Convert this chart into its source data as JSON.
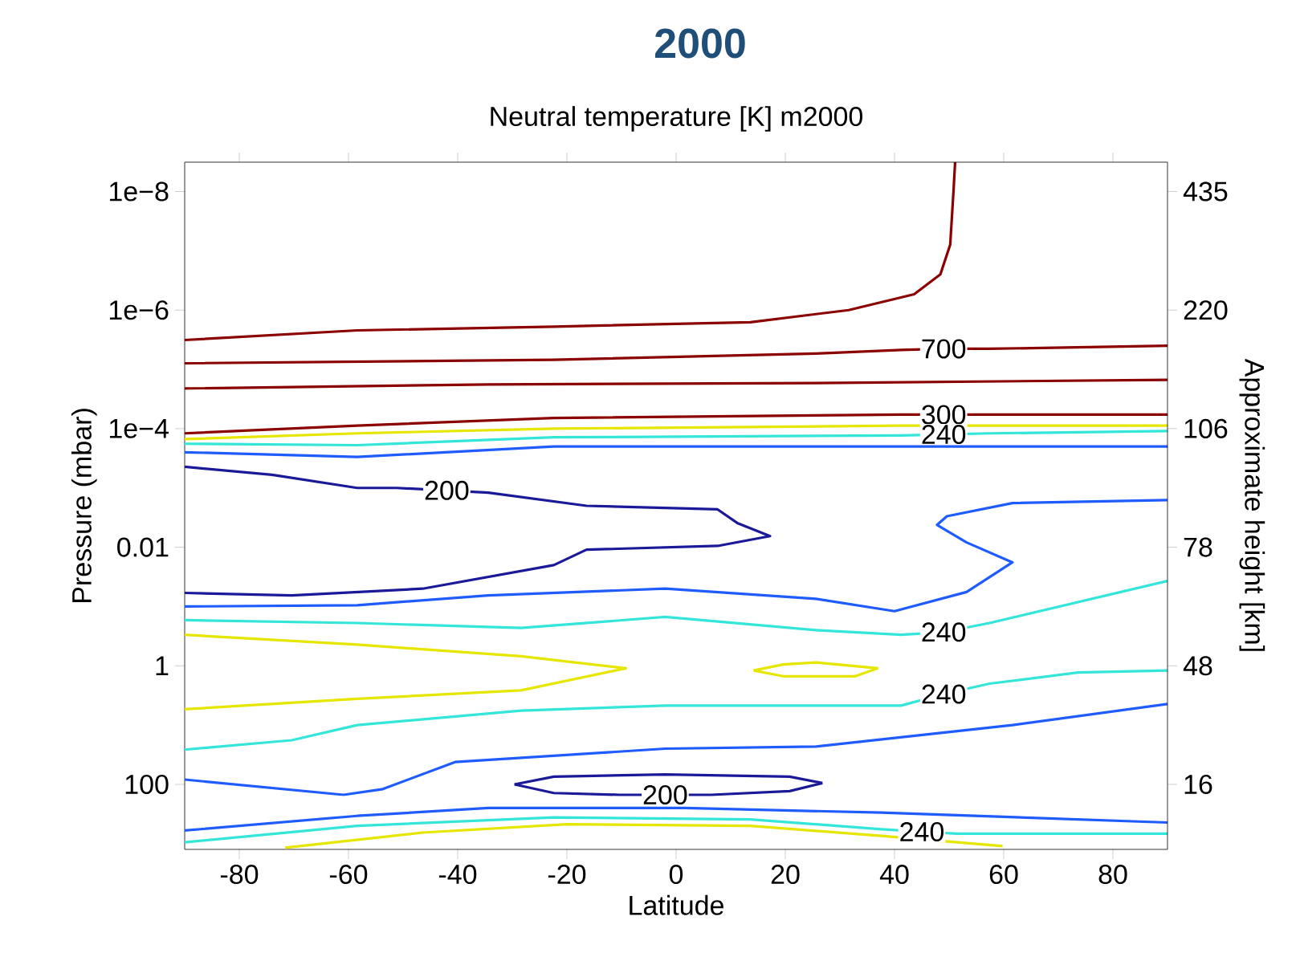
{
  "chart_data": {
    "type": "line",
    "title": "2000",
    "subtitle": "Neutral temperature [K]  m2000",
    "xlabel": "Latitude",
    "ylabel": "Pressure (mbar)",
    "y2label": "Approximate height [km]",
    "xlim": [
      -90,
      90
    ],
    "xticks": [
      -80,
      -60,
      -40,
      -20,
      0,
      20,
      40,
      60,
      80
    ],
    "ylim": [
      1250,
      3.2e-09
    ],
    "log": "y",
    "yticks": [
      {
        "value": 1e-08,
        "label": "1e−8"
      },
      {
        "value": 1e-06,
        "label": "1e−6"
      },
      {
        "value": 0.0001,
        "label": "1e−4"
      },
      0.01,
      1,
      100
    ],
    "y2_categories": [
      "435",
      "220",
      "106",
      "78",
      "48",
      "16"
    ],
    "series": [
      {
        "color": "#8b0000",
        "x": [
          -90,
          -58.4,
          -22.4,
          13.6,
          31.6,
          43.6,
          48.4,
          50.2,
          50.8,
          51.1
        ],
        "values": [
          3.2e-06,
          2.2e-06,
          1.9e-06,
          1.6e-06,
          1e-06,
          5.4e-07,
          2.5e-07,
          7.9e-08,
          1e-08,
          3.2e-09
        ]
      },
      {
        "color": "#8b0000",
        "x": [
          -90,
          -22.4,
          25.6,
          41.2,
          49,
          57.4,
          90
        ],
        "values": [
          7.9e-06,
          6.9e-06,
          5.4e-06,
          4.7e-06,
          4.5e-06,
          4.5e-06,
          4e-06
        ]
      },
      {
        "color": "#8b0000",
        "x": [
          -90,
          -34.4,
          25.6,
          90
        ],
        "values": [
          2.1e-05,
          1.8e-05,
          1.7e-05,
          1.5e-05
        ]
      },
      {
        "color": "#8b0000",
        "x": [
          -90,
          -58.4,
          -22.4,
          41.2,
          49,
          57.4,
          90
        ],
        "values": [
          0.00012,
          8.9e-05,
          6.6e-05,
          5.8e-05,
          5.8e-05,
          5.8e-05,
          5.8e-05
        ]
      },
      {
        "color": "#e6e600",
        "x": [
          -90,
          -58.4,
          -22.4,
          41.2,
          90
        ],
        "values": [
          0.00015,
          0.00012,
          0.0001,
          8.9e-05,
          8.9e-05
        ]
      },
      {
        "color": "#33e6d9",
        "x": [
          -90,
          -58.4,
          -22.4,
          41.2,
          49,
          57.4,
          90
        ],
        "values": [
          0.00018,
          0.00019,
          0.00014,
          0.00013,
          0.000125,
          0.00012,
          0.00011
        ]
      },
      {
        "color": "#1f5cff",
        "x": [
          -90,
          -58.4,
          -22.4,
          90
        ],
        "values": [
          0.00025,
          0.0003,
          0.0002,
          0.0002
        ]
      },
      {
        "color": "#1a1a99",
        "x": [
          -90,
          -74.0,
          -58.4,
          -51.2,
          -42,
          -34.4,
          -16.4,
          7.6,
          11.2,
          17.2,
          7.6,
          -16.4,
          -22.4,
          -46.4,
          -70.4,
          -90
        ],
        "values": [
          0.00044,
          0.0006,
          0.001,
          0.001,
          0.0011,
          0.0012,
          0.002,
          0.0023,
          0.0039,
          0.0065,
          0.0095,
          0.011,
          0.02,
          0.05,
          0.065,
          0.059
        ]
      },
      {
        "color": "#1f5cff",
        "x": [
          90,
          61.6,
          49.6,
          47.8,
          53.2,
          61.6,
          53.2,
          40,
          25.6,
          -2,
          -34.4,
          -58.4,
          -90
        ],
        "values": [
          0.0016,
          0.0018,
          0.003,
          0.0042,
          0.0083,
          0.018,
          0.057,
          0.12,
          0.074,
          0.05,
          0.065,
          0.095,
          0.1
        ]
      },
      {
        "color": "#33e6d9",
        "x": [
          -90,
          -58.4,
          -28.4,
          -2,
          25.6,
          41.2,
          49,
          57.4,
          90
        ],
        "values": [
          0.17,
          0.19,
          0.23,
          0.15,
          0.25,
          0.3,
          0.27,
          0.19,
          0.037
        ]
      },
      {
        "color": "#e6e600",
        "x": [
          -90,
          -58.4,
          -28.4,
          -9.2,
          -28.4,
          -58.4,
          -90
        ],
        "values": [
          0.3,
          0.44,
          0.69,
          1.1,
          2.6,
          3.6,
          5.4
        ]
      },
      {
        "color": "#e6e600",
        "x": [
          14.2,
          19.6,
          25.6,
          37.0
        ],
        "values": [
          1.2,
          0.95,
          0.88,
          1.1
        ]
      },
      {
        "color": "#e6e600",
        "x": [
          14.2,
          19.6,
          25.6,
          32.8,
          37.0
        ],
        "values": [
          1.2,
          1.5,
          1.5,
          1.5,
          1.1
        ]
      },
      {
        "color": "#33e6d9",
        "x": [
          -90,
          -70.4,
          -58.4,
          -28.4,
          -2,
          41.2,
          49,
          57.4,
          73.6,
          90
        ],
        "values": [
          26,
          18,
          10,
          5.7,
          4.7,
          4.7,
          3.0,
          2.0,
          1.3,
          1.2
        ]
      },
      {
        "color": "#1f5cff",
        "x": [
          -90,
          -60.9,
          -53.7,
          -40.5,
          -2,
          25.6,
          61.6,
          90
        ],
        "values": [
          83,
          150,
          120,
          42,
          25,
          23,
          10,
          4.4
        ]
      },
      {
        "color": "#1a1a99",
        "x": [
          -29.6,
          -22.4,
          -2,
          20.8,
          26.8
        ],
        "values": [
          100,
          74,
          68,
          74,
          95
        ]
      },
      {
        "color": "#1a1a99",
        "x": [
          -29.6,
          -22.4,
          -10.4,
          -2,
          6.4,
          20.8,
          26.8
        ],
        "values": [
          100,
          140,
          150,
          150,
          150,
          130,
          95
        ]
      },
      {
        "color": "#1f5cff",
        "x": [
          -90,
          -58.4,
          -34.4,
          1.6,
          37.6,
          90
        ],
        "values": [
          600,
          340,
          250,
          250,
          300,
          440
        ]
      },
      {
        "color": "#33e6d9",
        "x": [
          -90,
          -58.4,
          -22.4,
          13.6,
          37.6,
          45,
          51.4,
          90
        ],
        "values": [
          950,
          500,
          360,
          390,
          570,
          630,
          680,
          680
        ]
      },
      {
        "color": "#e6e600",
        "x": [
          -71.6,
          -46.4,
          -20,
          13.6,
          37.6,
          59.8
        ],
        "values": [
          1170,
          650,
          470,
          500,
          740,
          1100
        ]
      }
    ],
    "annotations": [
      {
        "text": "700",
        "x": 49,
        "y": 4.5e-06
      },
      {
        "text": "300",
        "x": 49,
        "y": 5.8e-05
      },
      {
        "text": "240",
        "x": 49,
        "y": 0.000125
      },
      {
        "text": "200",
        "x": -42,
        "y": 0.0011
      },
      {
        "text": "240",
        "x": 49,
        "y": 0.27
      },
      {
        "text": "240",
        "x": 49,
        "y": 3.0
      },
      {
        "text": "200",
        "x": -2,
        "y": 150
      },
      {
        "text": "240",
        "x": 45,
        "y": 630
      }
    ]
  }
}
